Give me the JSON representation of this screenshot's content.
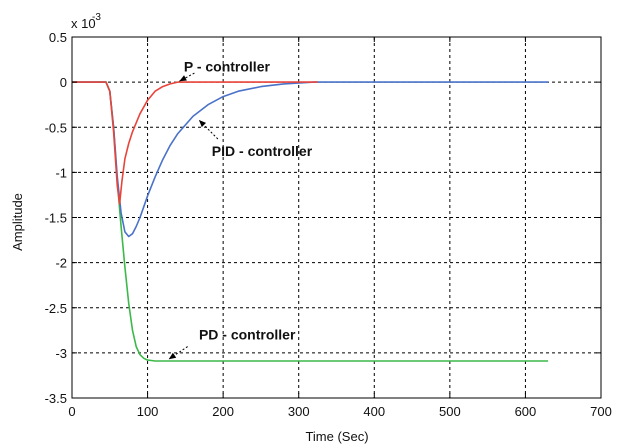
{
  "chart_data": {
    "type": "line",
    "xlabel": "Time (Sec)",
    "ylabel": "Amplitude",
    "scale_factor": {
      "base": "x 10",
      "exponent": "-3"
    },
    "xlim": [
      0,
      700
    ],
    "ylim": [
      -3.5,
      0.5
    ],
    "x_ticks": [
      0,
      100,
      200,
      300,
      400,
      500,
      600,
      700
    ],
    "y_ticks": [
      0.5,
      0,
      -0.5,
      -1,
      -1.5,
      -2,
      -2.5,
      -3,
      -3.5
    ],
    "x_tick_labels": [
      "0",
      "100",
      "200",
      "300",
      "400",
      "500",
      "600",
      "700"
    ],
    "y_tick_labels": [
      "0.5",
      "0",
      "-0.5",
      "-1",
      "-1.5",
      "-2",
      "-2.5",
      "-3",
      "-3.5"
    ],
    "grid": true,
    "series": [
      {
        "id": "pd",
        "color": "#3cb84a",
        "x": [
          0,
          45,
          50,
          55,
          60,
          65,
          70,
          75,
          80,
          85,
          90,
          95,
          100,
          105,
          110,
          120,
          140,
          200,
          300,
          400,
          500,
          630
        ],
        "y": [
          0,
          0,
          -0.1,
          -0.5,
          -1.1,
          -1.6,
          -2.05,
          -2.45,
          -2.75,
          -2.93,
          -3.02,
          -3.06,
          -3.08,
          -3.085,
          -3.09,
          -3.09,
          -3.09,
          -3.09,
          -3.09,
          -3.09,
          -3.09,
          -3.09
        ]
      },
      {
        "id": "pid",
        "color": "#4a72c8",
        "x": [
          0,
          45,
          50,
          55,
          60,
          65,
          70,
          75,
          80,
          85,
          90,
          95,
          100,
          110,
          120,
          130,
          140,
          160,
          180,
          200,
          220,
          250,
          280,
          320,
          400,
          500,
          630
        ],
        "y": [
          0,
          0,
          -0.1,
          -0.5,
          -1.05,
          -1.45,
          -1.66,
          -1.71,
          -1.68,
          -1.6,
          -1.5,
          -1.38,
          -1.26,
          -1.05,
          -0.86,
          -0.7,
          -0.57,
          -0.38,
          -0.25,
          -0.16,
          -0.1,
          -0.05,
          -0.02,
          0,
          0,
          0,
          0
        ]
      },
      {
        "id": "p",
        "color": "#e8443a",
        "x": [
          0,
          45,
          50,
          55,
          60,
          63,
          66,
          70,
          75,
          80,
          90,
          100,
          110,
          120,
          130,
          140,
          150,
          170,
          200,
          250,
          325
        ],
        "y": [
          0,
          0,
          -0.1,
          -0.55,
          -1.15,
          -1.35,
          -1.1,
          -0.85,
          -0.68,
          -0.55,
          -0.35,
          -0.2,
          -0.1,
          -0.05,
          -0.02,
          0,
          0,
          0,
          0,
          0,
          0
        ]
      }
    ],
    "annotations": [
      {
        "id": "p",
        "text": "P - controller",
        "label_at": [
          148,
          0.12
        ],
        "arrow_from": [
          162,
          0.1
        ],
        "arrow_to": [
          142,
          0.01
        ]
      },
      {
        "id": "pid",
        "text": "PID - controller",
        "label_at": [
          185,
          -0.82
        ],
        "arrow_from": [
          193,
          -0.63
        ],
        "arrow_to": [
          168,
          -0.42
        ]
      },
      {
        "id": "pd",
        "text": "PD - controller",
        "label_at": [
          168,
          -2.85
        ],
        "arrow_from": [
          153,
          -2.93
        ],
        "arrow_to": [
          128,
          -3.07
        ]
      }
    ]
  }
}
